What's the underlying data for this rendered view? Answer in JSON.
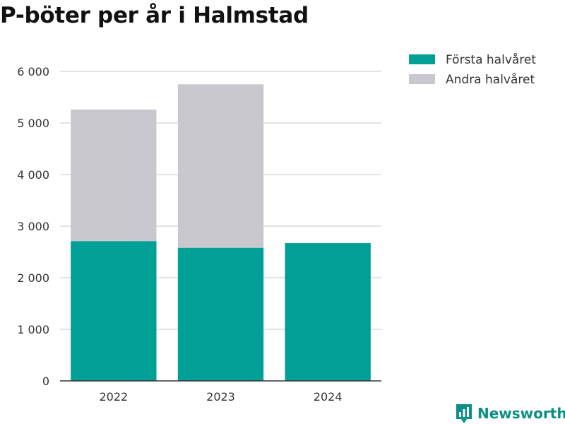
{
  "chart_data": {
    "type": "bar",
    "stacked": true,
    "title": "P-böter per år i Halmstad",
    "xlabel": "",
    "ylabel": "",
    "categories": [
      "2022",
      "2023",
      "2024"
    ],
    "series": [
      {
        "name": "Första halvåret",
        "color": "#00a096",
        "values": [
          2710,
          2580,
          2670
        ]
      },
      {
        "name": "Andra halvåret",
        "color": "#c8c8ce",
        "values": [
          2550,
          3170,
          0
        ]
      }
    ],
    "ylim": [
      0,
      6000
    ],
    "yticks": [
      0,
      1000,
      2000,
      3000,
      4000,
      5000,
      6000
    ],
    "ytick_labels": [
      "0",
      "1 000",
      "2 000",
      "3 000",
      "4 000",
      "5 000",
      "6 000"
    ],
    "grid": true,
    "legend_position": "top-right"
  },
  "brand": {
    "name": "Newsworthy",
    "icon": "bar-chart-pin-icon",
    "color": "#0b8f87"
  }
}
